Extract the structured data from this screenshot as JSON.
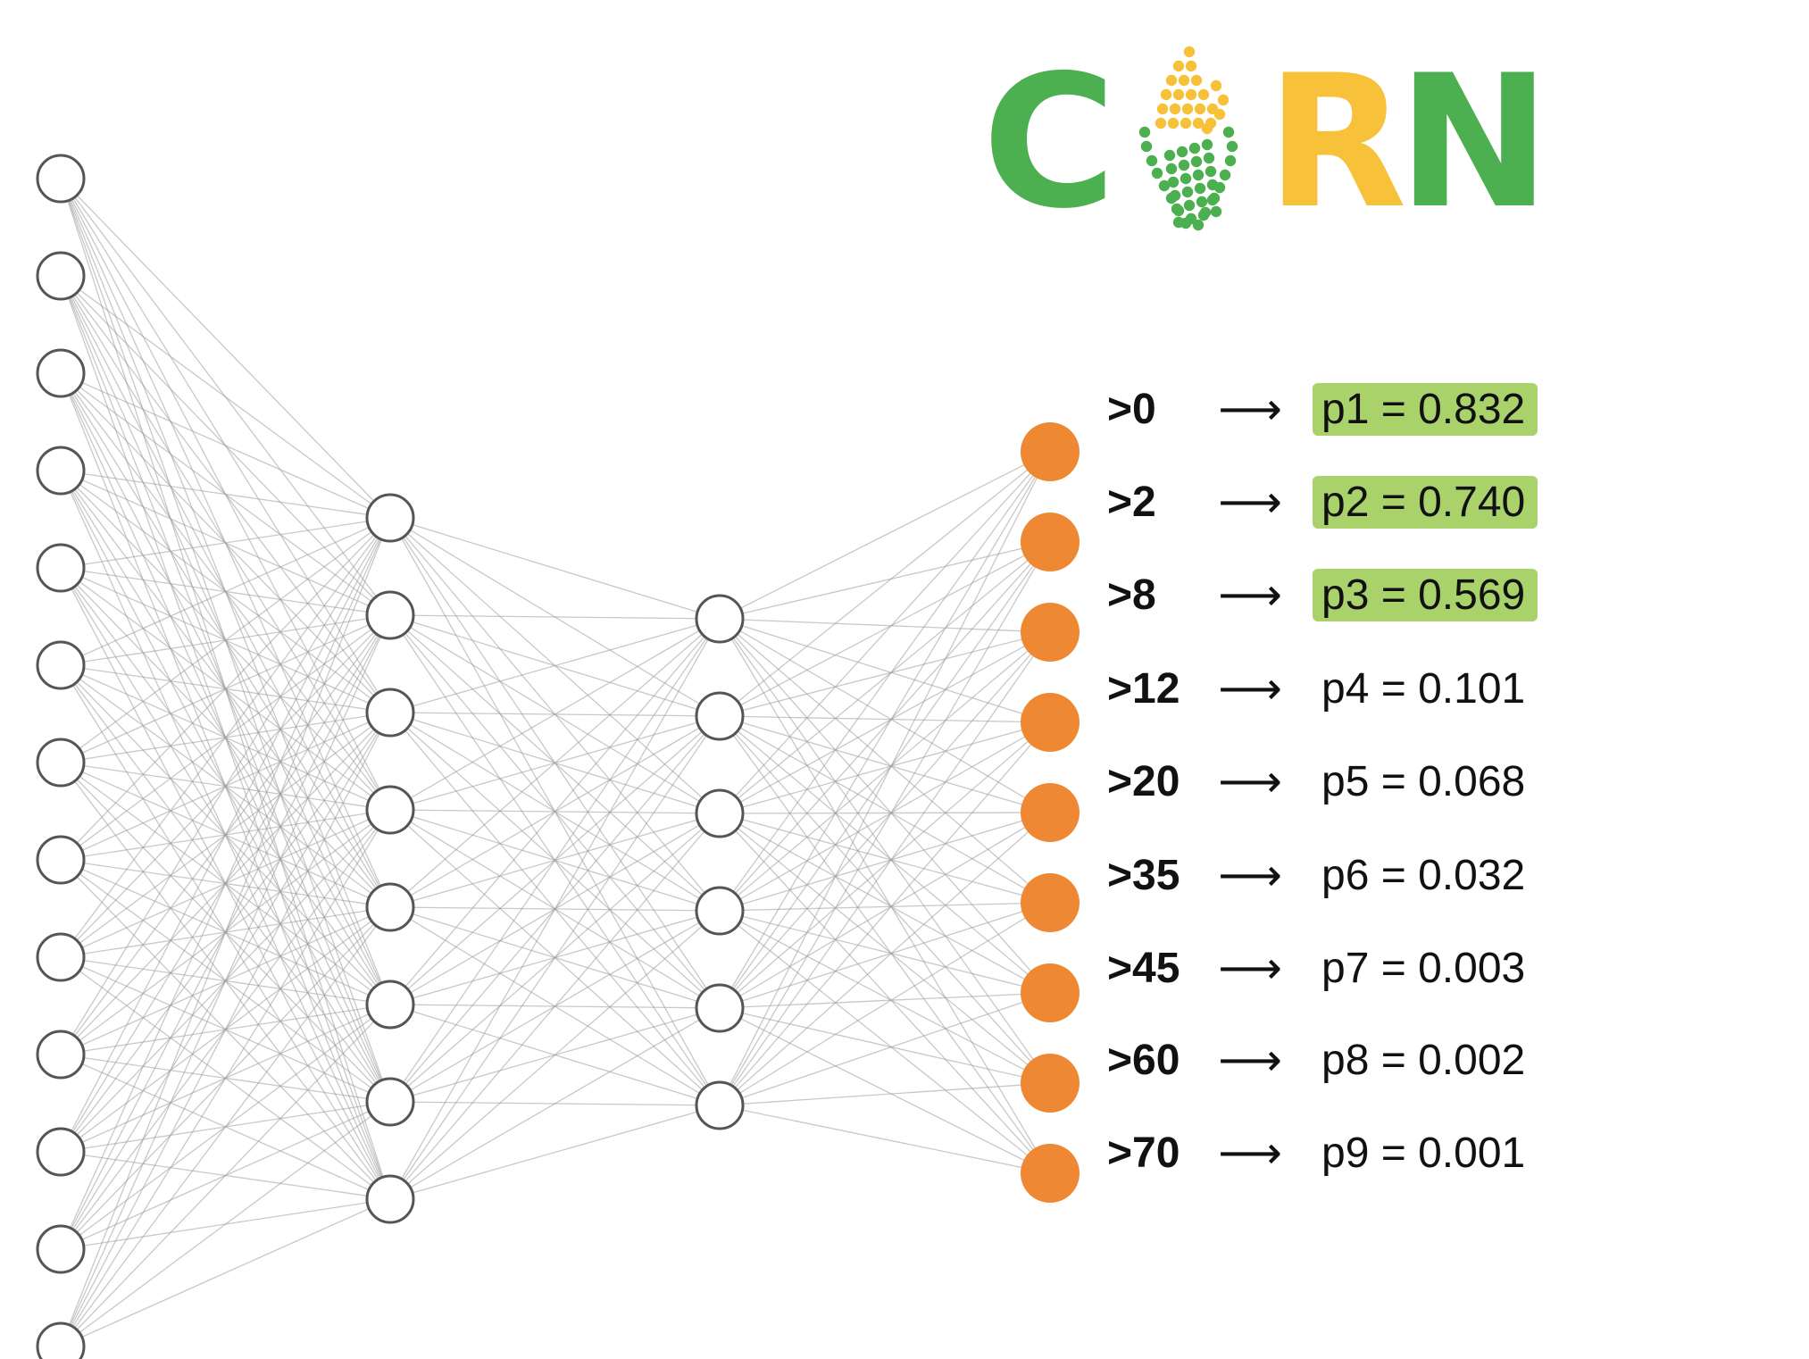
{
  "logo": {
    "letters": [
      "C",
      "R",
      "N"
    ],
    "colors": {
      "green": "#4caf50",
      "yellow": "#f8c13a"
    }
  },
  "network": {
    "layer_sizes": [
      13,
      8,
      6,
      9
    ],
    "input_color": "#ffffff",
    "output_color": "#ee8832",
    "edge_color": "#9a9a9a"
  },
  "outputs": [
    {
      "threshold": ">0",
      "arrow": "⟶",
      "prob": "p1 = 0.832",
      "highlight": true
    },
    {
      "threshold": ">2",
      "arrow": "⟶",
      "prob": "p2 = 0.740",
      "highlight": true
    },
    {
      "threshold": ">8",
      "arrow": "⟶",
      "prob": "p3 = 0.569",
      "highlight": true
    },
    {
      "threshold": ">12",
      "arrow": "⟶",
      "prob": "p4 = 0.101",
      "highlight": false
    },
    {
      "threshold": ">20",
      "arrow": "⟶",
      "prob": "p5 = 0.068",
      "highlight": false
    },
    {
      "threshold": ">35",
      "arrow": "⟶",
      "prob": "p6 = 0.032",
      "highlight": false
    },
    {
      "threshold": ">45",
      "arrow": "⟶",
      "prob": "p7 = 0.003",
      "highlight": false
    },
    {
      "threshold": ">60",
      "arrow": "⟶",
      "prob": "p8 = 0.002",
      "highlight": false
    },
    {
      "threshold": ">70",
      "arrow": "⟶",
      "prob": "p9 = 0.001",
      "highlight": false
    }
  ],
  "highlight_color": "#a9d26b"
}
